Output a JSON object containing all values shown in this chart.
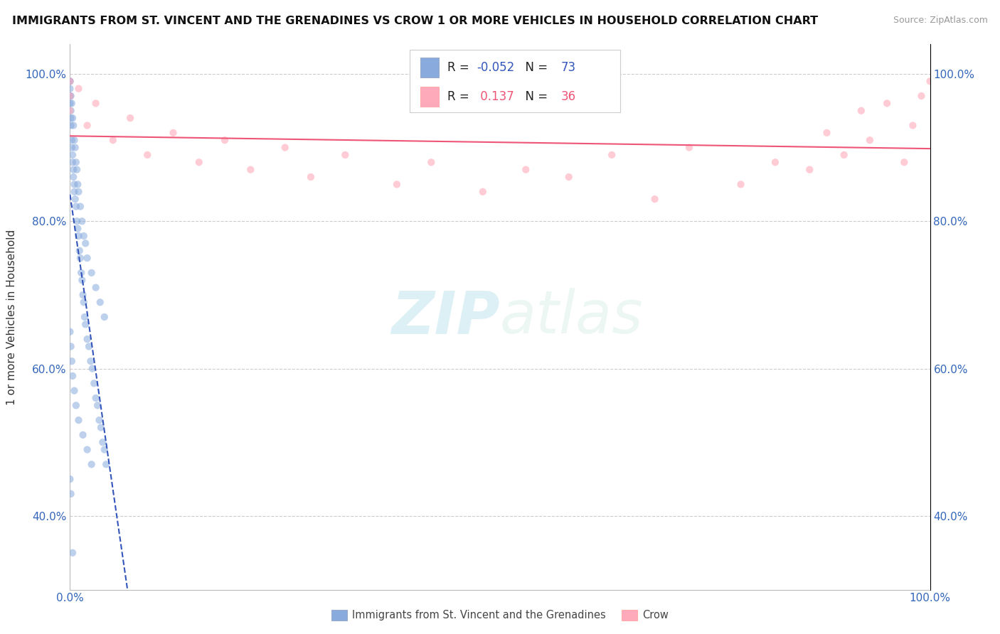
{
  "title": "IMMIGRANTS FROM ST. VINCENT AND THE GRENADINES VS CROW 1 OR MORE VEHICLES IN HOUSEHOLD CORRELATION CHART",
  "source_text": "Source: ZipAtlas.com",
  "ylabel": "1 or more Vehicles in Household",
  "blue_label": "Immigrants from St. Vincent and the Grenadines",
  "pink_label": "Crow",
  "blue_R": -0.052,
  "blue_N": 73,
  "pink_R": 0.137,
  "pink_N": 36,
  "blue_color": "#88AADD",
  "pink_color": "#FFAABB",
  "blue_line_color": "#3355BB",
  "pink_line_color": "#EE5577",
  "xlim": [
    0.0,
    1.0
  ],
  "ylim": [
    0.3,
    1.04
  ],
  "yticks": [
    0.4,
    0.6,
    0.8,
    1.0
  ],
  "grid_color": "#CCCCCC",
  "background": "#FFFFFF",
  "title_fontsize": 11.5,
  "axis_fontsize": 11,
  "legend_fontsize": 12,
  "blue_x": [
    0.0,
    0.0,
    0.0,
    0.0,
    0.001,
    0.001,
    0.001,
    0.002,
    0.002,
    0.003,
    0.003,
    0.004,
    0.004,
    0.005,
    0.005,
    0.006,
    0.007,
    0.008,
    0.009,
    0.01,
    0.011,
    0.012,
    0.013,
    0.014,
    0.015,
    0.016,
    0.017,
    0.018,
    0.02,
    0.022,
    0.024,
    0.026,
    0.028,
    0.03,
    0.032,
    0.034,
    0.036,
    0.038,
    0.04,
    0.042,
    0.0,
    0.001,
    0.002,
    0.003,
    0.004,
    0.005,
    0.006,
    0.007,
    0.008,
    0.009,
    0.01,
    0.012,
    0.014,
    0.016,
    0.018,
    0.02,
    0.025,
    0.03,
    0.035,
    0.04,
    0.0,
    0.001,
    0.002,
    0.003,
    0.005,
    0.007,
    0.01,
    0.015,
    0.02,
    0.025,
    0.0,
    0.001,
    0.003
  ],
  "blue_y": [
    0.99,
    0.98,
    0.97,
    0.96,
    0.95,
    0.94,
    0.93,
    0.91,
    0.9,
    0.89,
    0.88,
    0.87,
    0.86,
    0.85,
    0.84,
    0.83,
    0.82,
    0.8,
    0.79,
    0.78,
    0.76,
    0.75,
    0.73,
    0.72,
    0.7,
    0.69,
    0.67,
    0.66,
    0.64,
    0.63,
    0.61,
    0.6,
    0.58,
    0.56,
    0.55,
    0.53,
    0.52,
    0.5,
    0.49,
    0.47,
    0.99,
    0.97,
    0.96,
    0.94,
    0.93,
    0.91,
    0.9,
    0.88,
    0.87,
    0.85,
    0.84,
    0.82,
    0.8,
    0.78,
    0.77,
    0.75,
    0.73,
    0.71,
    0.69,
    0.67,
    0.65,
    0.63,
    0.61,
    0.59,
    0.57,
    0.55,
    0.53,
    0.51,
    0.49,
    0.47,
    0.45,
    0.43,
    0.35
  ],
  "pink_x": [
    0.0,
    0.0,
    0.0,
    0.01,
    0.02,
    0.03,
    0.05,
    0.07,
    0.09,
    0.12,
    0.15,
    0.18,
    0.21,
    0.25,
    0.28,
    0.32,
    0.38,
    0.42,
    0.48,
    0.53,
    0.58,
    0.63,
    0.68,
    0.72,
    0.78,
    0.82,
    0.86,
    0.88,
    0.9,
    0.92,
    0.93,
    0.95,
    0.97,
    0.98,
    0.99,
    1.0
  ],
  "pink_y": [
    0.99,
    0.97,
    0.95,
    0.98,
    0.93,
    0.96,
    0.91,
    0.94,
    0.89,
    0.92,
    0.88,
    0.91,
    0.87,
    0.9,
    0.86,
    0.89,
    0.85,
    0.88,
    0.84,
    0.87,
    0.86,
    0.89,
    0.83,
    0.9,
    0.85,
    0.88,
    0.87,
    0.92,
    0.89,
    0.95,
    0.91,
    0.96,
    0.88,
    0.93,
    0.97,
    0.99
  ]
}
